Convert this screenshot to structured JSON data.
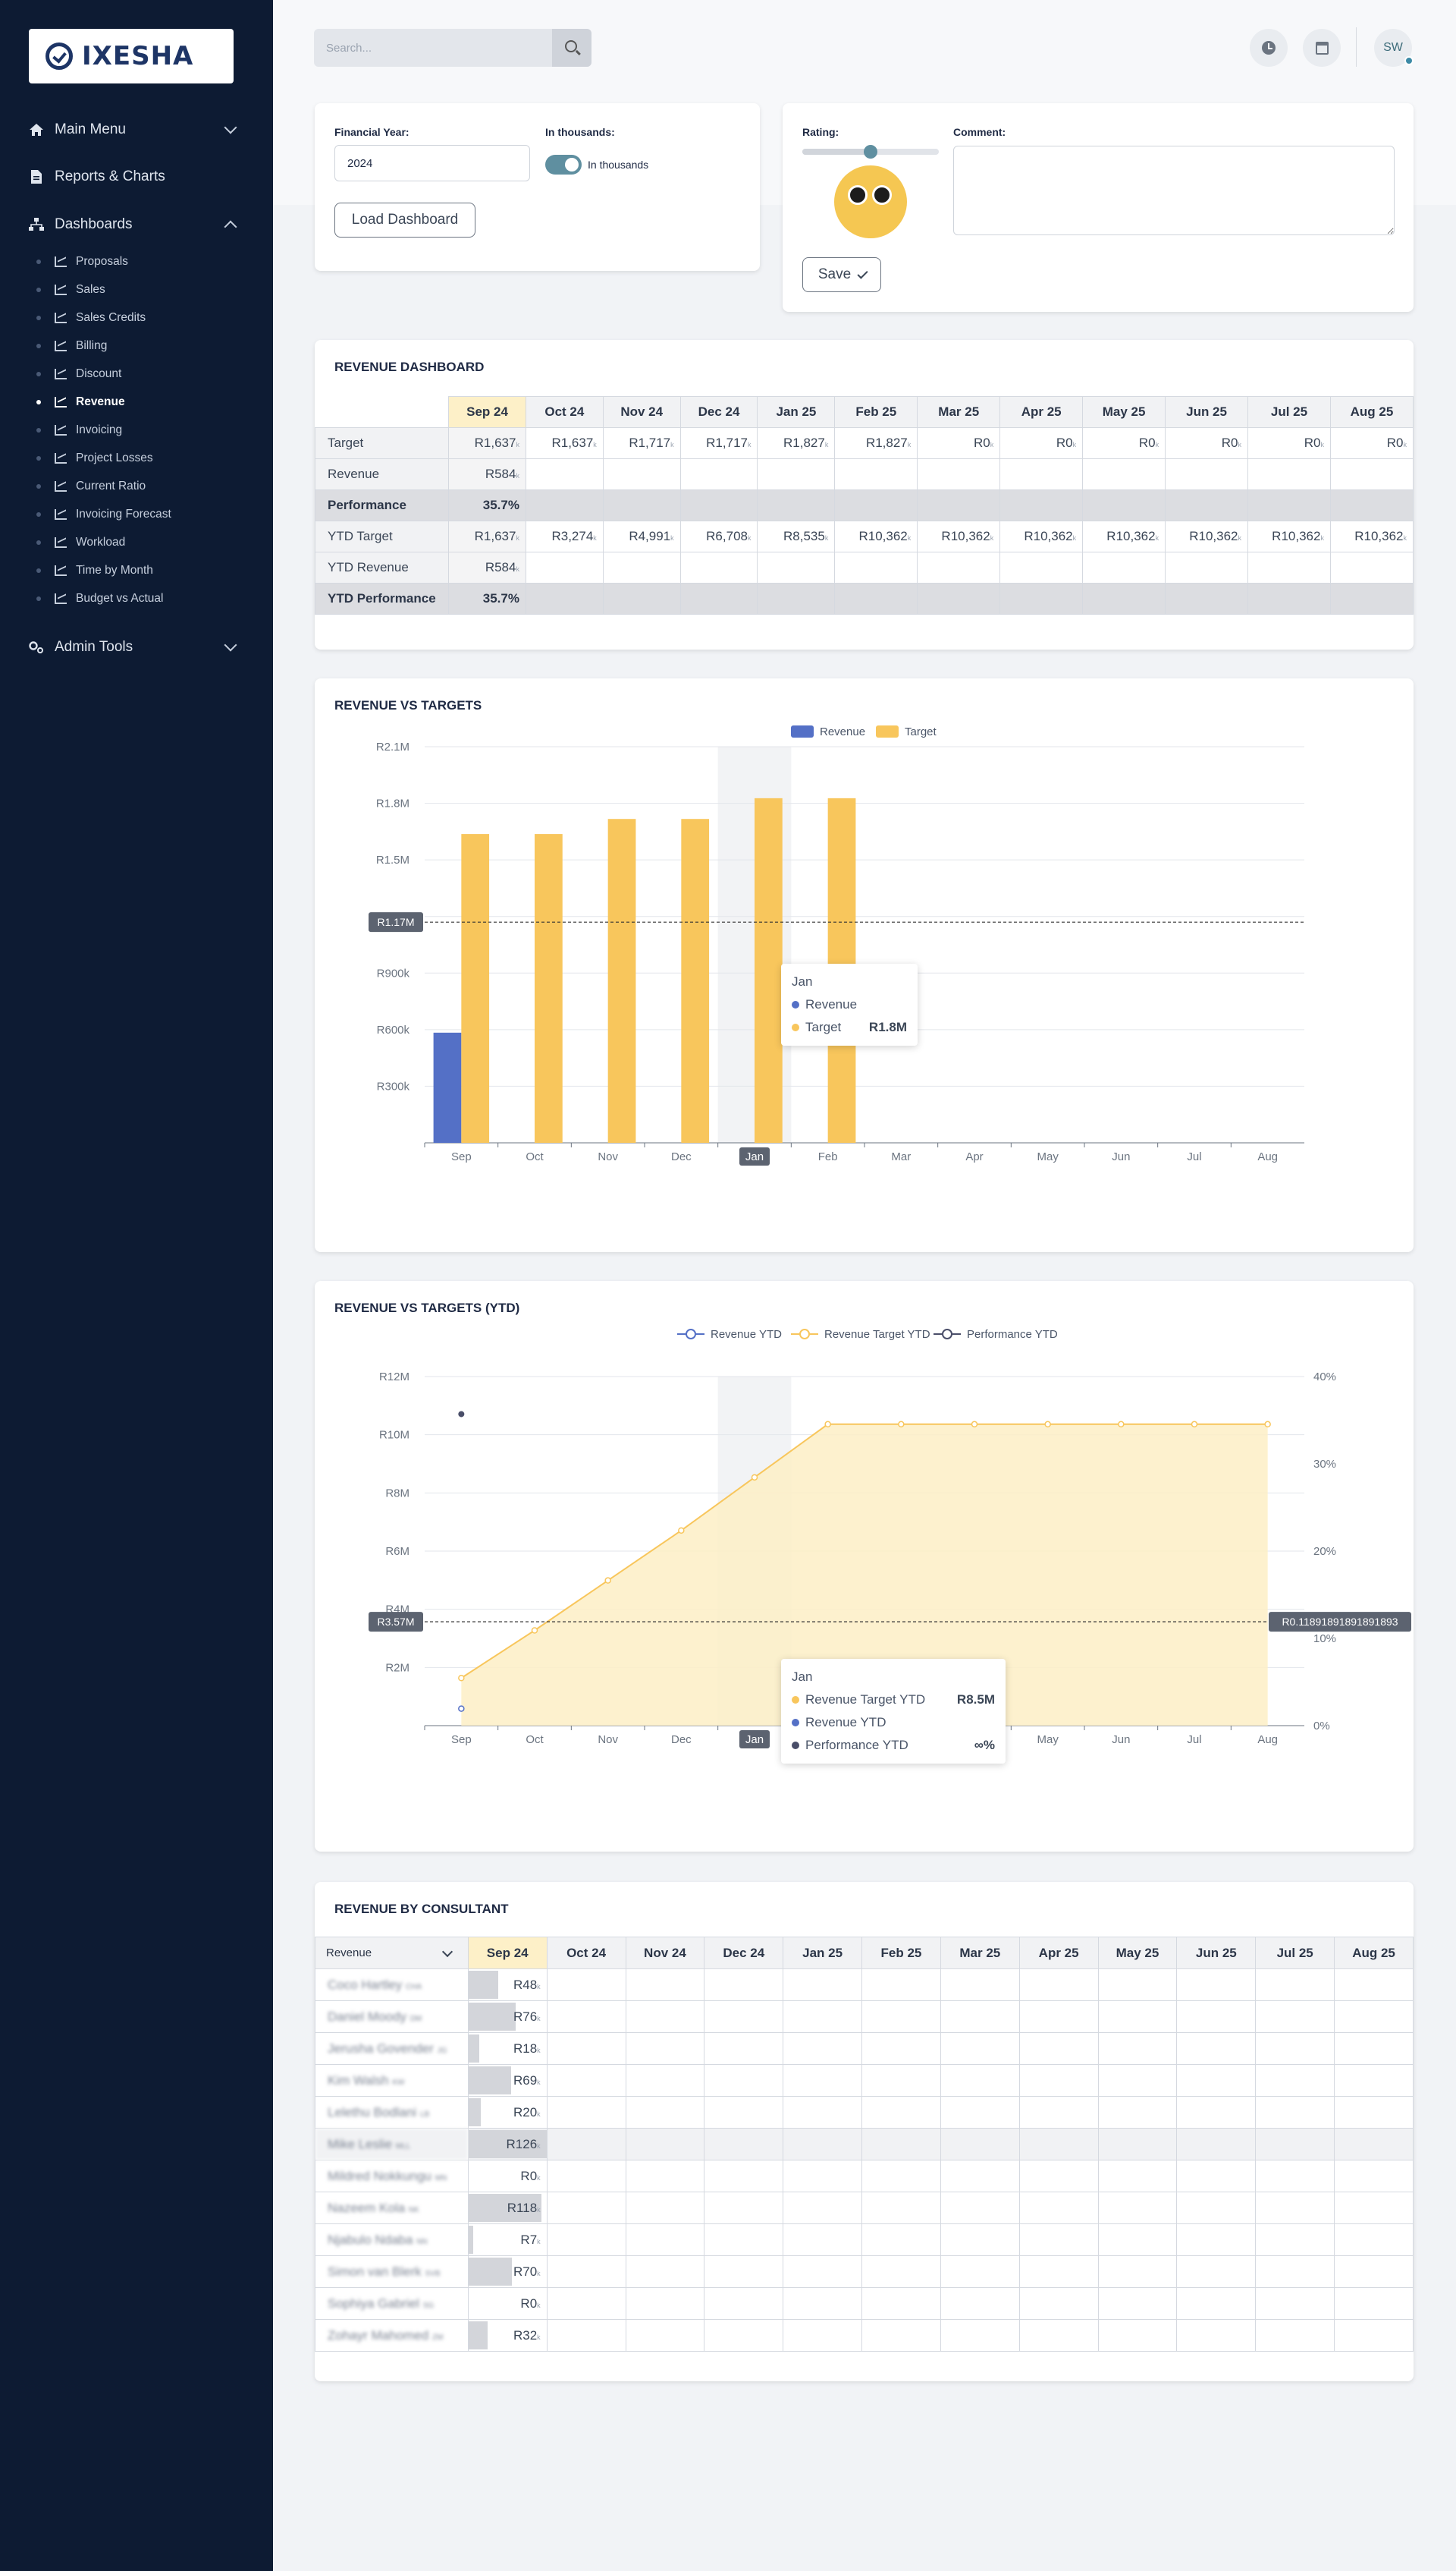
{
  "logo": {
    "text": "IXESHA"
  },
  "sidebar": {
    "main_menu": "Main Menu",
    "reports": "Reports & Charts",
    "dashboards": "Dashboards",
    "admin_tools": "Admin Tools",
    "items": [
      {
        "label": "Proposals",
        "active": false
      },
      {
        "label": "Sales",
        "active": false
      },
      {
        "label": "Sales Credits",
        "active": false
      },
      {
        "label": "Billing",
        "active": false
      },
      {
        "label": "Discount",
        "active": false
      },
      {
        "label": "Revenue",
        "active": true
      },
      {
        "label": "Invoicing",
        "active": false
      },
      {
        "label": "Project Losses",
        "active": false
      },
      {
        "label": "Current Ratio",
        "active": false
      },
      {
        "label": "Invoicing Forecast",
        "active": false
      },
      {
        "label": "Workload",
        "active": false
      },
      {
        "label": "Time by Month",
        "active": false
      },
      {
        "label": "Budget vs Actual",
        "active": false
      }
    ]
  },
  "topbar": {
    "search_placeholder": "Search...",
    "avatar_initials": "SW"
  },
  "filters": {
    "financial_year_label": "Financial Year:",
    "financial_year_value": "2024",
    "thousands_label": "In thousands:",
    "thousands_toggle_text": "In thousands",
    "thousands_on": true,
    "load_button": "Load Dashboard"
  },
  "feedback": {
    "rating_label": "Rating:",
    "rating_fraction": 0.5,
    "comment_label": "Comment:",
    "comment_value": "",
    "save_button": "Save"
  },
  "revenue_dashboard": {
    "title": "REVENUE DASHBOARD",
    "months": [
      "Sep 24",
      "Oct 24",
      "Nov 24",
      "Dec 24",
      "Jan 25",
      "Feb 25",
      "Mar 25",
      "Apr 25",
      "May 25",
      "Jun 25",
      "Jul 25",
      "Aug 25"
    ],
    "unit_suffix": "k",
    "rows": [
      {
        "label": "Target",
        "type": "normal",
        "values": [
          "R1,637",
          "R1,637",
          "R1,717",
          "R1,717",
          "R1,827",
          "R1,827",
          "R0",
          "R0",
          "R0",
          "R0",
          "R0",
          "R0"
        ]
      },
      {
        "label": "Revenue",
        "type": "normal",
        "values": [
          "R584",
          "",
          "",
          "",
          "",
          "",
          "",
          "",
          "",
          "",
          "",
          ""
        ]
      },
      {
        "label": "Performance",
        "type": "perf",
        "values": [
          "35.7%",
          "",
          "",
          "",
          "",
          "",
          "",
          "",
          "",
          "",
          "",
          ""
        ]
      },
      {
        "label": "YTD Target",
        "type": "normal",
        "values": [
          "R1,637",
          "R3,274",
          "R4,991",
          "R6,708",
          "R8,535",
          "R10,362",
          "R10,362",
          "R10,362",
          "R10,362",
          "R10,362",
          "R10,362",
          "R10,362"
        ]
      },
      {
        "label": "YTD Revenue",
        "type": "normal",
        "values": [
          "R584",
          "",
          "",
          "",
          "",
          "",
          "",
          "",
          "",
          "",
          "",
          ""
        ]
      },
      {
        "label": "YTD Performance",
        "type": "perf",
        "values": [
          "35.7%",
          "",
          "",
          "",
          "",
          "",
          "",
          "",
          "",
          "",
          "",
          ""
        ]
      }
    ]
  },
  "chart_data": [
    {
      "type": "bar",
      "title": "REVENUE VS TARGETS",
      "categories": [
        "Sep",
        "Oct",
        "Nov",
        "Dec",
        "Jan",
        "Feb",
        "Mar",
        "Apr",
        "May",
        "Jun",
        "Jul",
        "Aug"
      ],
      "series": [
        {
          "name": "Revenue",
          "color": "#5470c6",
          "values": [
            584000,
            null,
            null,
            null,
            null,
            null,
            null,
            null,
            null,
            null,
            null,
            null
          ]
        },
        {
          "name": "Target",
          "color": "#f8c65c",
          "values": [
            1637000,
            1637000,
            1717000,
            1717000,
            1827000,
            1827000,
            0,
            0,
            0,
            0,
            0,
            0
          ]
        }
      ],
      "y_ticks": [
        "R300k",
        "R600k",
        "R900k",
        "R1.2M",
        "R1.5M",
        "R1.8M",
        "R2.1M"
      ],
      "ylim": [
        0,
        2100000
      ],
      "average_line": {
        "value": 1170000,
        "label": "R1.17M"
      },
      "highlight_category": "Jan",
      "tooltip": {
        "title": "Jan",
        "rows": [
          {
            "name": "Revenue",
            "color": "#5470c6",
            "value": ""
          },
          {
            "name": "Target",
            "color": "#f8c65c",
            "value": "R1.8M"
          }
        ]
      },
      "legend": "top-center",
      "grid": true
    },
    {
      "type": "line",
      "title": "REVENUE VS TARGETS (YTD)",
      "categories": [
        "Sep",
        "Oct",
        "Nov",
        "Dec",
        "Jan",
        "Feb",
        "Mar",
        "Apr",
        "May",
        "Jun",
        "Jul",
        "Aug"
      ],
      "series": [
        {
          "name": "Revenue YTD",
          "color": "#5470c6",
          "axis": "left",
          "values": [
            584000,
            null,
            null,
            null,
            null,
            null,
            null,
            null,
            null,
            null,
            null,
            null
          ]
        },
        {
          "name": "Revenue Target YTD",
          "color": "#f8c65c",
          "axis": "left",
          "area": true,
          "values": [
            1637000,
            3274000,
            4991000,
            6708000,
            8535000,
            10362000,
            10362000,
            10362000,
            10362000,
            10362000,
            10362000,
            10362000
          ]
        },
        {
          "name": "Performance YTD",
          "color": "#4a4e69",
          "axis": "right",
          "values": [
            35.7,
            null,
            null,
            null,
            null,
            null,
            null,
            null,
            null,
            null,
            null,
            null
          ]
        }
      ],
      "y_ticks_left": [
        "R2M",
        "R4M",
        "R6M",
        "R8M",
        "R10M",
        "R12M"
      ],
      "ylim_left": [
        0,
        12000000
      ],
      "y_ticks_right": [
        "0%",
        "10%",
        "20%",
        "30%",
        "40%"
      ],
      "ylim_right": [
        0,
        40
      ],
      "average_line": {
        "value": 3570000,
        "label_left": "R3.57M",
        "label_right": "R0.11891891891891893"
      },
      "highlight_category": "Jan",
      "tooltip": {
        "title": "Jan",
        "rows": [
          {
            "name": "Revenue Target YTD",
            "color": "#f8c65c",
            "value": "R8.5M"
          },
          {
            "name": "Revenue YTD",
            "color": "#5470c6",
            "value": ""
          },
          {
            "name": "Performance YTD",
            "color": "#4a4e69",
            "value": "∞%"
          }
        ]
      },
      "legend": "top-center",
      "grid": true
    }
  ],
  "consultant": {
    "title": "REVENUE BY CONSULTANT",
    "select_value": "Revenue",
    "months": [
      "Sep 24",
      "Oct 24",
      "Nov 24",
      "Dec 24",
      "Jan 25",
      "Feb 25",
      "Mar 25",
      "Apr 25",
      "May 25",
      "Jun 25",
      "Jul 25",
      "Aug 25"
    ],
    "rows": [
      {
        "name": "Coco Hartley",
        "code": "CHA",
        "sep": "R48",
        "share": 0.38
      },
      {
        "name": "Daniel Moody",
        "code": "DM",
        "sep": "R76",
        "share": 0.6
      },
      {
        "name": "Jerusha Govender",
        "code": "JG",
        "sep": "R18",
        "share": 0.14
      },
      {
        "name": "Kim Walsh",
        "code": "KW",
        "sep": "R69",
        "share": 0.55
      },
      {
        "name": "Lelethu Bodlani",
        "code": "LB",
        "sep": "R20",
        "share": 0.16
      },
      {
        "name": "Mike Leslie",
        "code": "MLL",
        "sep": "R126",
        "share": 1.0
      },
      {
        "name": "Mildred Nokkungu",
        "code": "MN",
        "sep": "R0",
        "share": 0.0
      },
      {
        "name": "Nazeem Kola",
        "code": "NK",
        "sep": "R118",
        "share": 0.94
      },
      {
        "name": "Njabulo Ndaba",
        "code": "NN",
        "sep": "R7",
        "share": 0.06
      },
      {
        "name": "Simon van Blerk",
        "code": "SVB",
        "sep": "R70",
        "share": 0.56
      },
      {
        "name": "Sophiya Gabriel",
        "code": "SG",
        "sep": "R0",
        "share": 0.0
      },
      {
        "name": "Zohayr Mahomed",
        "code": "ZM",
        "sep": "R32",
        "share": 0.25
      }
    ]
  }
}
